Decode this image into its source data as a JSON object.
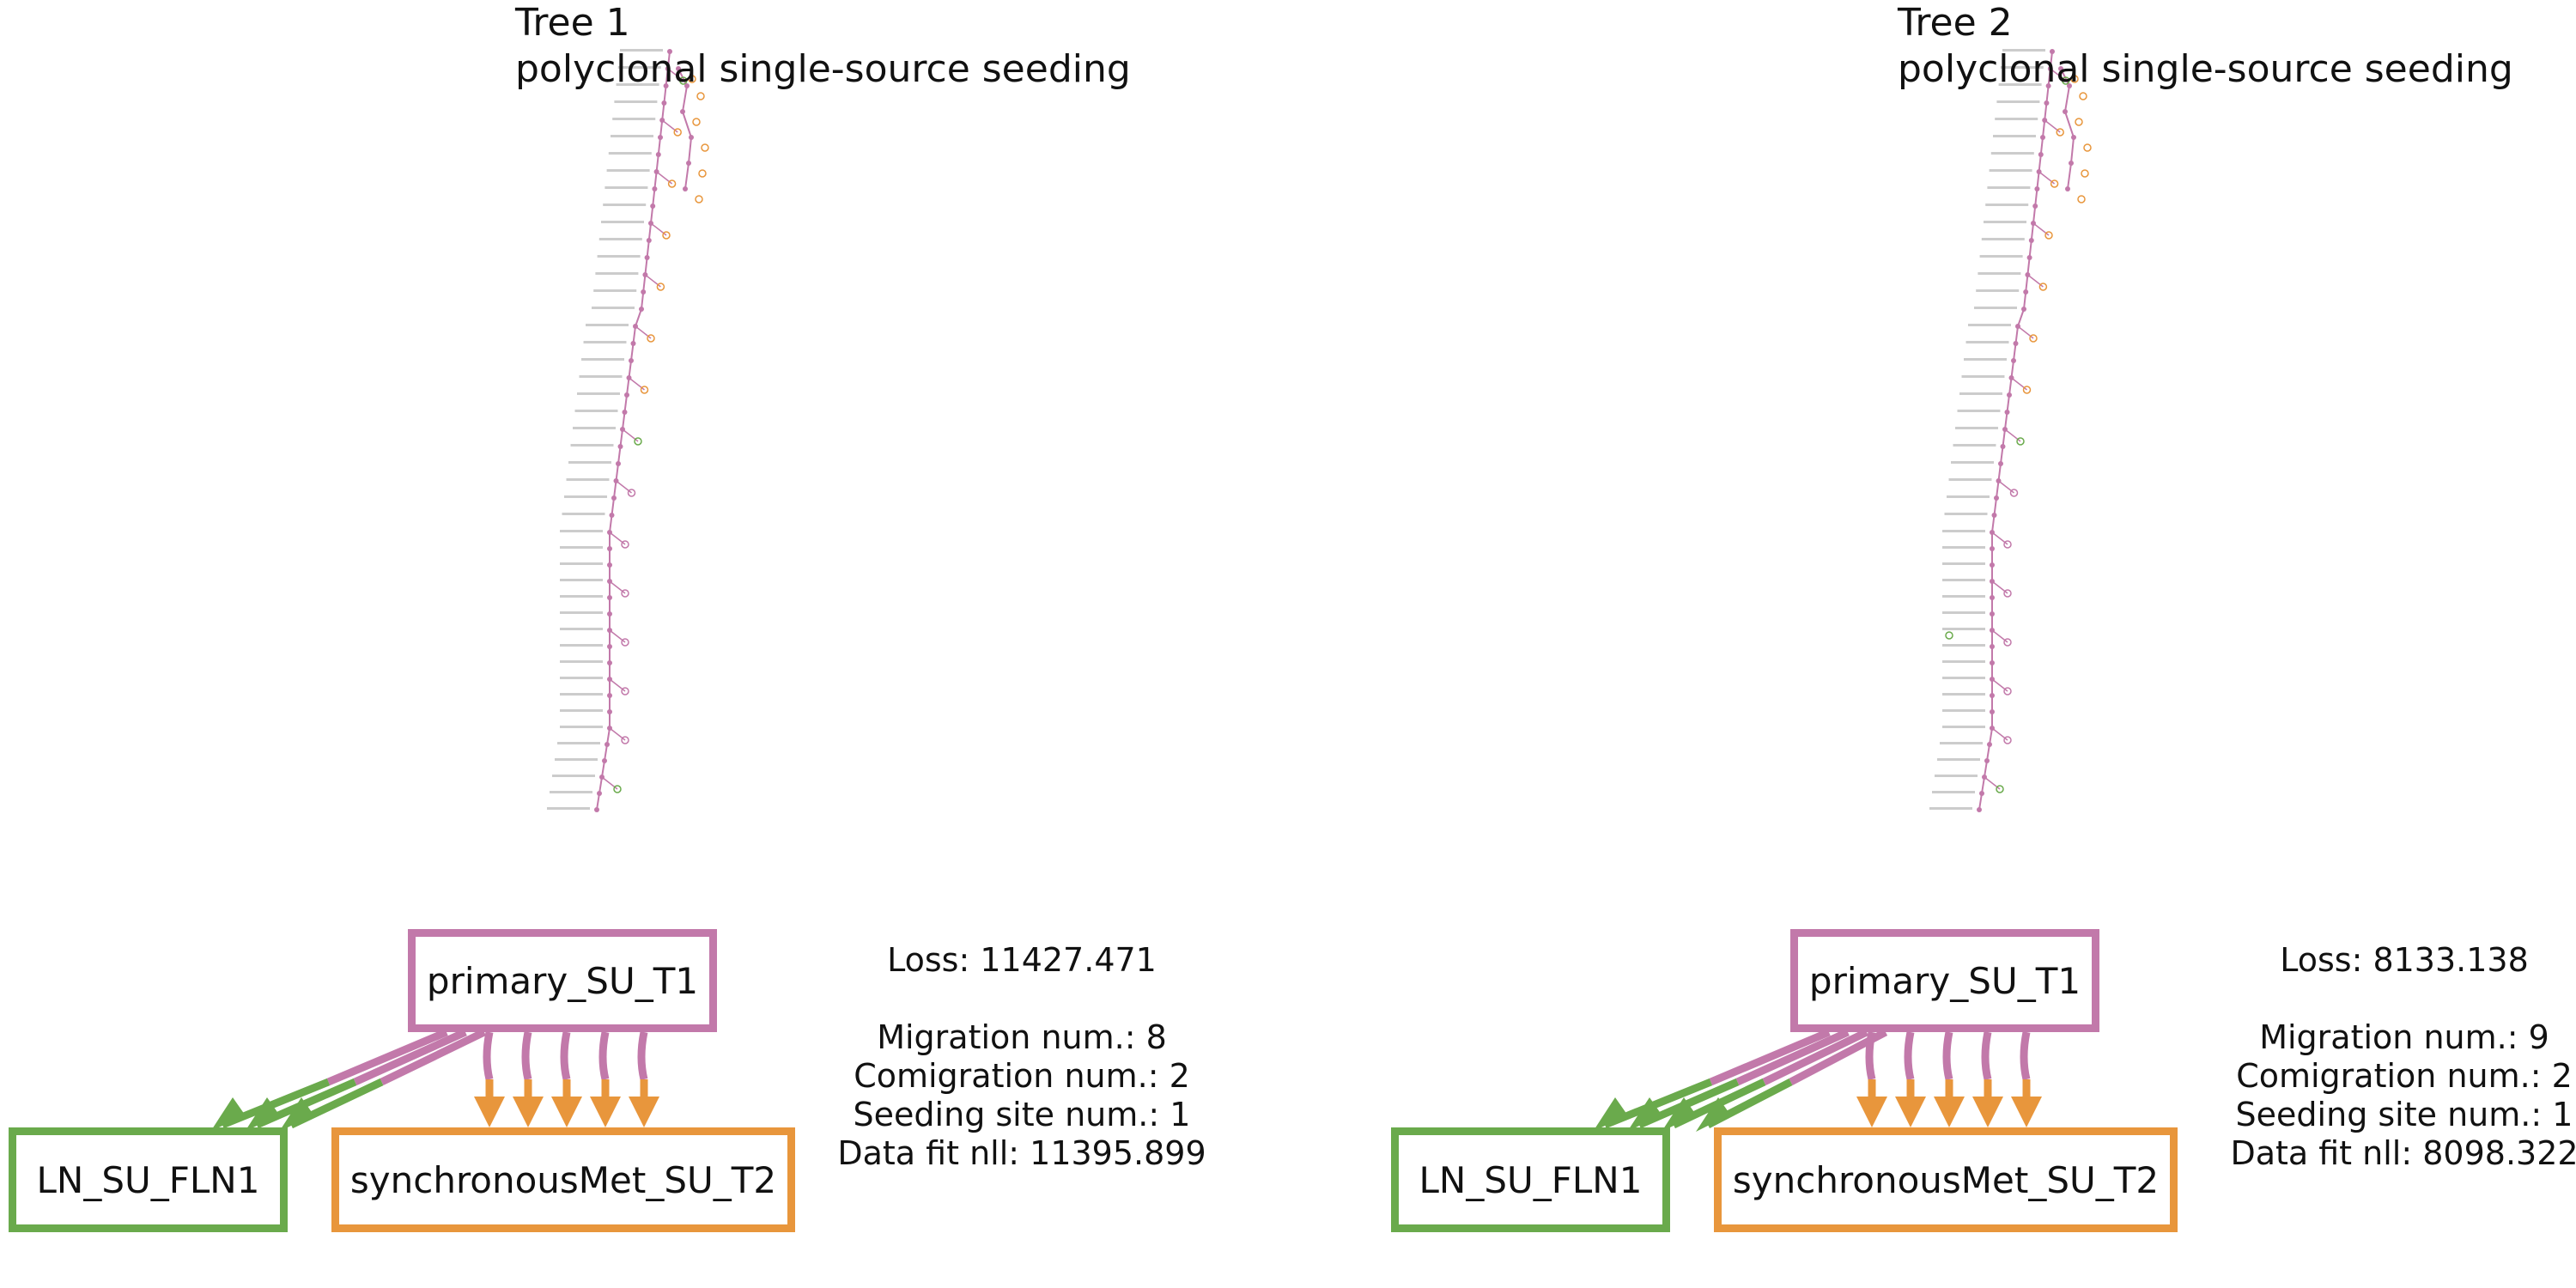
{
  "colors": {
    "primary": "#c279aa",
    "lymph_node": "#6aaa4c",
    "metastasis": "#e8963c"
  },
  "panels": [
    {
      "title": "Tree 1",
      "subtitle": "polyclonal single-source seeding",
      "nodes": {
        "primary": "primary_SU_T1",
        "ln": "LN_SU_FLN1",
        "met": "synchronousMet_SU_T2"
      },
      "stats": {
        "loss": "Loss: 11427.471",
        "migration": "Migration num.: 8",
        "comigration": "Comigration num.: 2",
        "seeding": "Seeding site num.: 1",
        "datafit": "Data fit nll: 11395.899"
      },
      "migrations_to_ln": 3,
      "migrations_to_met": 5
    },
    {
      "title": "Tree 2",
      "subtitle": "polyclonal single-source seeding",
      "nodes": {
        "primary": "primary_SU_T1",
        "ln": "LN_SU_FLN1",
        "met": "synchronousMet_SU_T2"
      },
      "stats": {
        "loss": "Loss: 8133.138",
        "migration": "Migration num.: 9",
        "comigration": "Comigration num.: 2",
        "seeding": "Seeding site num.: 1",
        "datafit": "Data fit nll: 8098.322"
      },
      "migrations_to_ln": 4,
      "migrations_to_met": 5
    }
  ]
}
